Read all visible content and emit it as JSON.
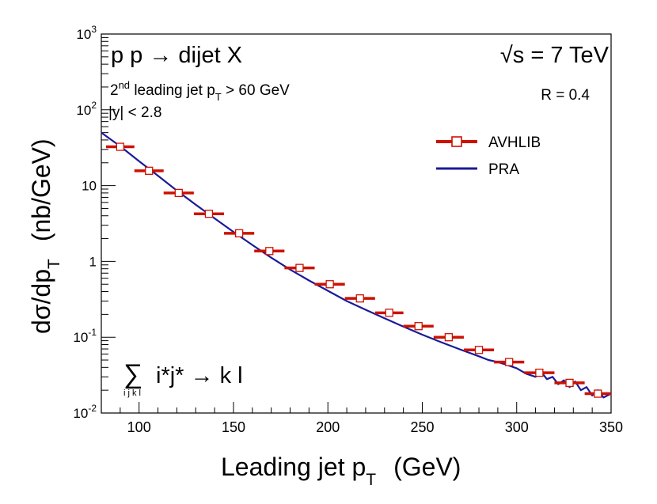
{
  "chart_data": {
    "type": "line",
    "scale_y": "log",
    "xlim": [
      80,
      350
    ],
    "ylim": [
      0.01,
      1000
    ],
    "xlabel": "Leading jet p",
    "xlabel_sub": "T",
    "xlabel_unit": "(GeV)",
    "ylabel": "dσ/dp",
    "ylabel_sub": "T",
    "ylabel_unit": "(nb/GeV)",
    "x_ticks": [
      {
        "value": 100,
        "label": "100"
      },
      {
        "value": 150,
        "label": "150"
      },
      {
        "value": 200,
        "label": "200"
      },
      {
        "value": 250,
        "label": "250"
      },
      {
        "value": 300,
        "label": "300"
      },
      {
        "value": 350,
        "label": "350"
      }
    ],
    "y_ticks": [
      {
        "value": 0.01,
        "base": "10",
        "exp": "-2"
      },
      {
        "value": 0.1,
        "base": "10",
        "exp": "-1"
      },
      {
        "value": 1,
        "base": "1",
        "exp": ""
      },
      {
        "value": 10,
        "base": "10",
        "exp": ""
      },
      {
        "value": 100,
        "base": "10",
        "exp": "2"
      },
      {
        "value": 1000,
        "base": "10",
        "exp": "3"
      }
    ],
    "annotations": {
      "process": "p p → dijet X",
      "energy": "√s = 7 TeV",
      "cut1_prefix": "2",
      "cut1_sup": "nd",
      "cut1_mid": " leading jet p",
      "cut1_sub": "T",
      "cut1_suffix": " > 60 GeV",
      "cut2": "|y| < 2.8",
      "radius": "R = 0.4",
      "sum_symbol": "∑",
      "sum_index": "i j k l",
      "subprocess": "i*j* → k l"
    },
    "legend": [
      {
        "label": "AVHLIB",
        "color": "#cc1100",
        "style": "marker-line"
      },
      {
        "label": "PRA",
        "color": "#1a1a99",
        "style": "line"
      }
    ],
    "series": [
      {
        "name": "AVHLIB",
        "color": "#cc1100",
        "bins": [
          {
            "x_low": 82.5,
            "x_high": 97.5,
            "y": 32.5
          },
          {
            "x_low": 97.5,
            "x_high": 113,
            "y": 15.7
          },
          {
            "x_low": 113,
            "x_high": 129,
            "y": 8.0
          },
          {
            "x_low": 129,
            "x_high": 145,
            "y": 4.25
          },
          {
            "x_low": 145,
            "x_high": 161,
            "y": 2.35
          },
          {
            "x_low": 161,
            "x_high": 177,
            "y": 1.37
          },
          {
            "x_low": 177,
            "x_high": 193,
            "y": 0.82
          },
          {
            "x_low": 193,
            "x_high": 209,
            "y": 0.5
          },
          {
            "x_low": 209,
            "x_high": 225,
            "y": 0.325
          },
          {
            "x_low": 225,
            "x_high": 240,
            "y": 0.21
          },
          {
            "x_low": 240,
            "x_high": 256,
            "y": 0.14
          },
          {
            "x_low": 256,
            "x_high": 272,
            "y": 0.1
          },
          {
            "x_low": 272,
            "x_high": 288,
            "y": 0.068
          },
          {
            "x_low": 288,
            "x_high": 304,
            "y": 0.047
          },
          {
            "x_low": 304,
            "x_high": 320,
            "y": 0.034
          },
          {
            "x_low": 320,
            "x_high": 336,
            "y": 0.025
          },
          {
            "x_low": 336,
            "x_high": 350,
            "y": 0.018
          }
        ]
      },
      {
        "name": "PRA",
        "color": "#1a1a99",
        "x": [
          80,
          90,
          100,
          110,
          120,
          130,
          140,
          150,
          160,
          170,
          180,
          190,
          200,
          210,
          220,
          230,
          240,
          250,
          260,
          270,
          280,
          285,
          290,
          295,
          300,
          305,
          310,
          313,
          316,
          319,
          322,
          325,
          328,
          331,
          334,
          337,
          340,
          343,
          346,
          350
        ],
        "y": [
          50,
          33,
          21,
          13.5,
          8.6,
          5.6,
          3.7,
          2.45,
          1.65,
          1.12,
          0.78,
          0.56,
          0.41,
          0.3,
          0.23,
          0.178,
          0.138,
          0.108,
          0.086,
          0.069,
          0.056,
          0.05,
          0.047,
          0.043,
          0.039,
          0.033,
          0.03,
          0.035,
          0.028,
          0.03,
          0.024,
          0.027,
          0.022,
          0.026,
          0.02,
          0.022,
          0.017,
          0.02,
          0.016,
          0.018
        ]
      }
    ]
  }
}
